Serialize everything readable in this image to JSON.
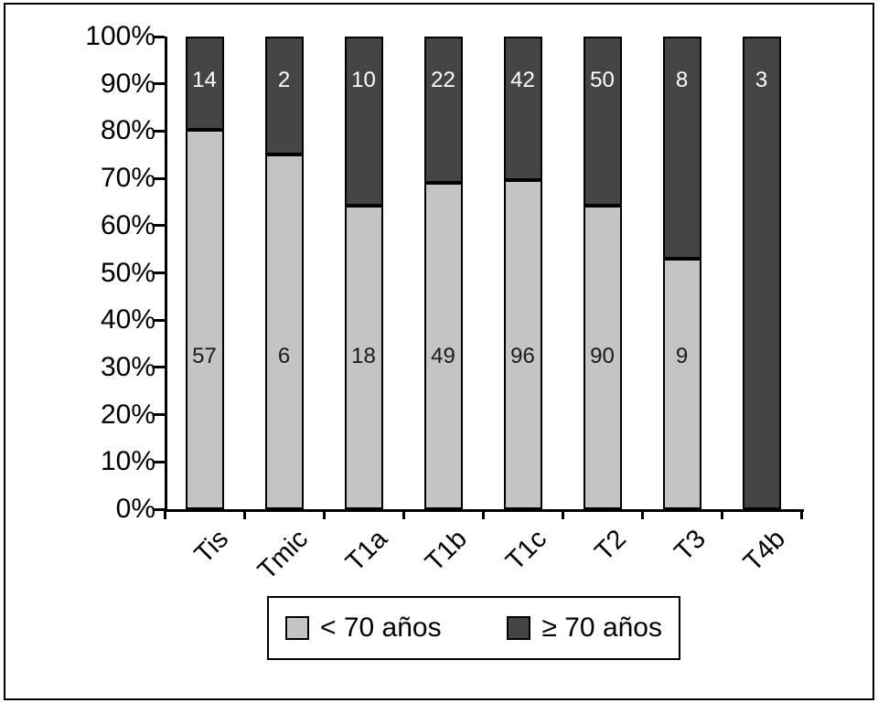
{
  "chart_data": {
    "type": "bar",
    "stacked": true,
    "percent_axis": true,
    "title": "",
    "xlabel": "",
    "ylabel": "",
    "categories": [
      "Tis",
      "Tmic",
      "T1a",
      "T1b",
      "T1c",
      "T2",
      "T3",
      "T4b"
    ],
    "series": [
      {
        "name": "< 70 años",
        "color": "#c4c4c4",
        "label_text_color": "#1a1a1a",
        "values": [
          57,
          6,
          18,
          49,
          96,
          90,
          9,
          0
        ]
      },
      {
        "name": "≥ 70 años",
        "color": "#454545",
        "label_text_color": "#ffffff",
        "values": [
          14,
          2,
          10,
          22,
          42,
          50,
          8,
          3
        ]
      }
    ],
    "y_tick_labels": [
      "100%",
      "90%",
      "80%",
      "70%",
      "60%",
      "50%",
      "40%",
      "30%",
      "20%",
      "10%",
      "0%"
    ],
    "ylim": [
      0,
      100
    ],
    "grid": false,
    "legend_position": "bottom-center",
    "axis_color": "#000000",
    "bar_outline_color": "#000000",
    "background_color": "#ffffff"
  }
}
